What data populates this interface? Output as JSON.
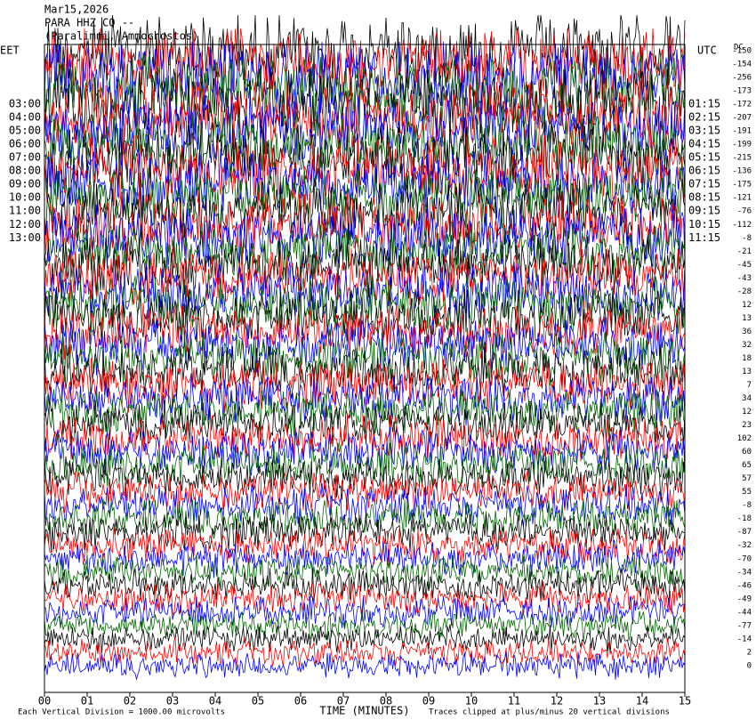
{
  "header": {
    "date": "Mar15,2026",
    "station": "PARA HHZ CQ --",
    "location": "(Paralimni, Ammochostos)"
  },
  "left_zone": "EET",
  "right_zone": "UTC",
  "dc_title": "DC",
  "left_labels": [
    "03:00",
    "04:00",
    "05:00",
    "06:00",
    "07:00",
    "08:00",
    "09:00",
    "10:00",
    "11:00",
    "12:00",
    "13:00"
  ],
  "right_labels": [
    "01:15",
    "02:15",
    "03:15",
    "04:15",
    "05:15",
    "06:15",
    "07:15",
    "08:15",
    "09:15",
    "10:15",
    "11:15"
  ],
  "dc_values": [
    "-150",
    "-154",
    "-256",
    "-173",
    "-172",
    "-207",
    "-191",
    "-199",
    "-215",
    "-136",
    "-175",
    "-121",
    "-76",
    "-112",
    "-8",
    "-21",
    "-45",
    "-43",
    "-28",
    "12",
    "13",
    "36",
    "32",
    "18",
    "13",
    "7",
    "34",
    "12",
    "23",
    "102",
    "60",
    "65",
    "57",
    "55",
    "-8",
    "-18",
    "-87",
    "-32",
    "-70",
    "-34",
    "-46",
    "-49",
    "-44",
    "-77",
    "-14",
    "2",
    "0"
  ],
  "trace_colors": [
    "#000000",
    "#ff0000",
    "#0000ff",
    "#006400"
  ],
  "x_ticks": [
    "00",
    "01",
    "02",
    "03",
    "04",
    "05",
    "06",
    "07",
    "08",
    "09",
    "10",
    "11",
    "12",
    "13",
    "14",
    "15"
  ],
  "x_axis_label": "TIME (MINUTES)",
  "footer_left": "Each Vertical Division = 1000.00 microvolts",
  "footer_right": "Traces clipped at plus/minus 20 vertical divisions"
}
